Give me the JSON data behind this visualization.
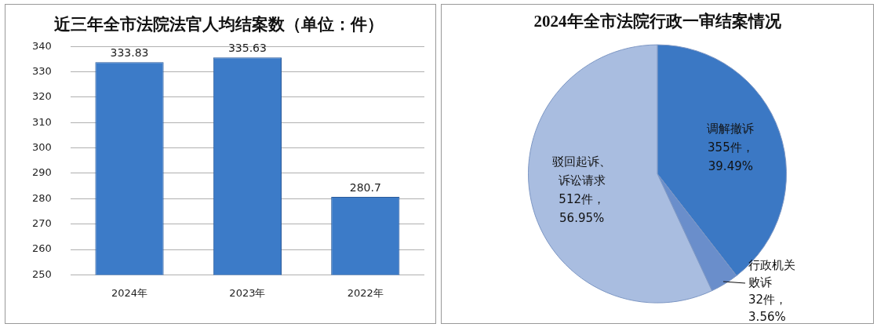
{
  "chart_data": [
    {
      "type": "bar",
      "title": "近三年全市法院法官人均结案数（单位：件）",
      "categories": [
        "2024年",
        "2023年",
        "2022年"
      ],
      "values": [
        333.83,
        335.63,
        280.7
      ],
      "color": "#3c7bc8",
      "ylim": [
        250,
        340
      ],
      "yticks": [
        250,
        260,
        270,
        280,
        290,
        300,
        310,
        320,
        330,
        340
      ],
      "grid": "y",
      "data_labels": true
    },
    {
      "type": "pie",
      "title": "2024年全市法院行政一审结案情况",
      "categories": [
        "调解撤诉",
        "行政机关败诉",
        "驳回起诉、诉讼请求"
      ],
      "values": [
        355,
        32,
        512
      ],
      "colors": [
        "#3b78c4",
        "#6a8ecb",
        "#a9bde0"
      ],
      "value_labels": [
        "355件，\n39.49%",
        "32件，\n3.56%",
        "512件，\n56.95%"
      ]
    }
  ]
}
